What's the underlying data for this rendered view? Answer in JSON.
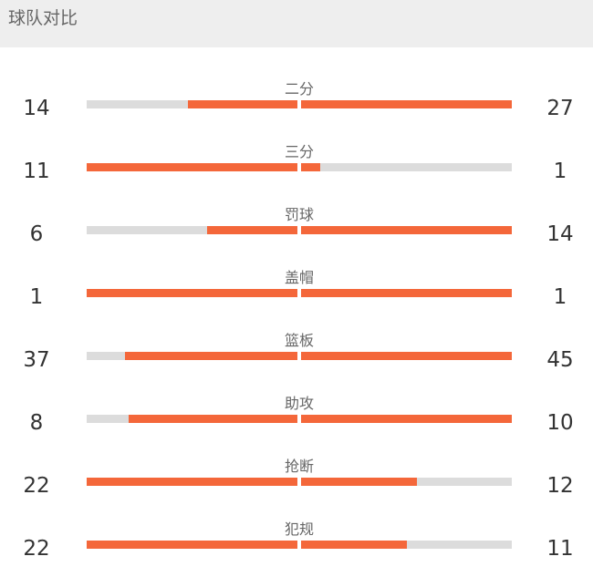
{
  "header": {
    "title": "球队对比"
  },
  "colors": {
    "accent": "#f4673a",
    "track": "#dcdcdc",
    "header_bg": "#eeeeee"
  },
  "stats": [
    {
      "label": "二分",
      "left_value": "14",
      "right_value": "27",
      "left_fill": 0.52,
      "right_fill": 1.0
    },
    {
      "label": "三分",
      "left_value": "11",
      "right_value": "1",
      "left_fill": 1.0,
      "right_fill": 0.09
    },
    {
      "label": "罚球",
      "left_value": "6",
      "right_value": "14",
      "left_fill": 0.43,
      "right_fill": 1.0
    },
    {
      "label": "盖帽",
      "left_value": "1",
      "right_value": "1",
      "left_fill": 1.0,
      "right_fill": 1.0
    },
    {
      "label": "篮板",
      "left_value": "37",
      "right_value": "45",
      "left_fill": 0.82,
      "right_fill": 1.0
    },
    {
      "label": "助攻",
      "left_value": "8",
      "right_value": "10",
      "left_fill": 0.8,
      "right_fill": 1.0
    },
    {
      "label": "抢断",
      "left_value": "22",
      "right_value": "12",
      "left_fill": 1.0,
      "right_fill": 0.55
    },
    {
      "label": "犯规",
      "left_value": "22",
      "right_value": "11",
      "left_fill": 1.0,
      "right_fill": 0.5
    }
  ]
}
